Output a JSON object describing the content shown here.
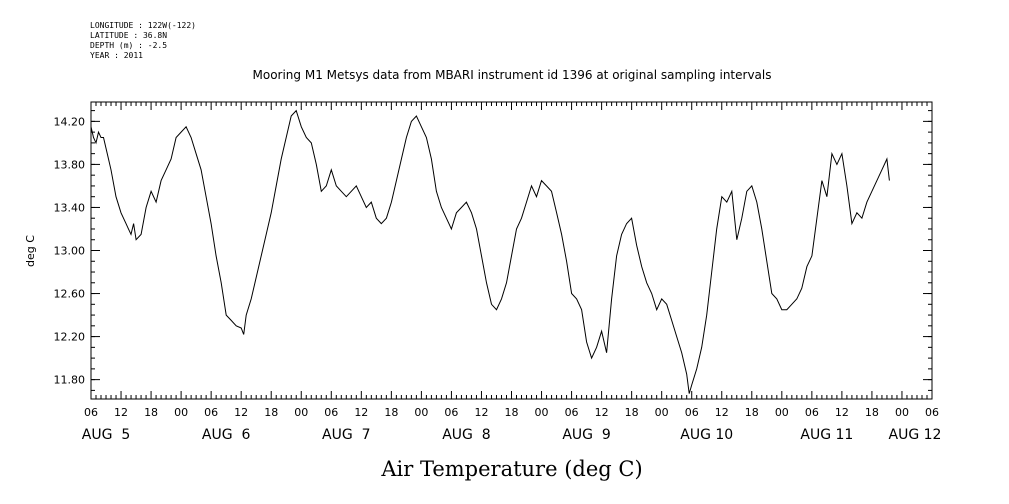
{
  "meta": {
    "longitude": "LONGITUDE : 122W(-122)",
    "latitude": "LATITUDE : 36.8N",
    "depth": "DEPTH (m) : -2.5",
    "year": "YEAR : 2011"
  },
  "chart_data": {
    "type": "line",
    "title": "Mooring M1 Metsys data from MBARI instrument id 1396 at original sampling intervals",
    "xlabel": "Air Temperature (deg C)",
    "ylabel": "deg C",
    "xlim": [
      0,
      168
    ],
    "ylim": [
      11.62,
      14.38
    ],
    "x_units": "hours since AUG 5 06:00 (2011)",
    "yticks": [
      {
        "value": 11.8,
        "label": "11.80"
      },
      {
        "value": 12.2,
        "label": "12.20"
      },
      {
        "value": 12.6,
        "label": "12.60"
      },
      {
        "value": 13.0,
        "label": "13.00"
      },
      {
        "value": 13.4,
        "label": "13.40"
      },
      {
        "value": 13.8,
        "label": "13.80"
      },
      {
        "value": 14.2,
        "label": "14.20"
      }
    ],
    "xticks": [
      {
        "x": 0,
        "label": "06"
      },
      {
        "x": 6,
        "label": "12"
      },
      {
        "x": 12,
        "label": "18"
      },
      {
        "x": 18,
        "label": "00"
      },
      {
        "x": 24,
        "label": "06"
      },
      {
        "x": 30,
        "label": "12"
      },
      {
        "x": 36,
        "label": "18"
      },
      {
        "x": 42,
        "label": "00"
      },
      {
        "x": 48,
        "label": "06"
      },
      {
        "x": 54,
        "label": "12"
      },
      {
        "x": 60,
        "label": "18"
      },
      {
        "x": 66,
        "label": "00"
      },
      {
        "x": 72,
        "label": "06"
      },
      {
        "x": 78,
        "label": "12"
      },
      {
        "x": 84,
        "label": "18"
      },
      {
        "x": 90,
        "label": "00"
      },
      {
        "x": 96,
        "label": "06"
      },
      {
        "x": 102,
        "label": "12"
      },
      {
        "x": 108,
        "label": "18"
      },
      {
        "x": 114,
        "label": "00"
      },
      {
        "x": 120,
        "label": "06"
      },
      {
        "x": 126,
        "label": "12"
      },
      {
        "x": 132,
        "label": "18"
      },
      {
        "x": 138,
        "label": "00"
      },
      {
        "x": 144,
        "label": "06"
      },
      {
        "x": 150,
        "label": "12"
      },
      {
        "x": 156,
        "label": "18"
      },
      {
        "x": 162,
        "label": "00"
      },
      {
        "x": 168,
        "label": "06"
      }
    ],
    "day_labels": [
      {
        "x": 3,
        "label": "AUG  5"
      },
      {
        "x": 27,
        "label": "AUG  6"
      },
      {
        "x": 51,
        "label": "AUG  7"
      },
      {
        "x": 75,
        "label": "AUG  8"
      },
      {
        "x": 99,
        "label": "AUG  9"
      },
      {
        "x": 123,
        "label": "AUG 10"
      },
      {
        "x": 147,
        "label": "AUG 11"
      },
      {
        "x": 168,
        "label": "AUG 12"
      }
    ],
    "series": [
      {
        "points": [
          [
            0.0,
            14.15
          ],
          [
            0.5,
            14.05
          ],
          [
            1.0,
            14.0
          ],
          [
            1.5,
            14.1
          ],
          [
            2.0,
            14.05
          ],
          [
            2.5,
            14.05
          ],
          [
            3.0,
            13.95
          ],
          [
            3.5,
            13.85
          ],
          [
            4.0,
            13.75
          ],
          [
            5.0,
            13.5
          ],
          [
            6.0,
            13.35
          ],
          [
            7.0,
            13.25
          ],
          [
            8.0,
            13.15
          ],
          [
            8.5,
            13.25
          ],
          [
            9.0,
            13.1
          ],
          [
            10.0,
            13.15
          ],
          [
            11.0,
            13.4
          ],
          [
            12.0,
            13.55
          ],
          [
            13.0,
            13.45
          ],
          [
            14.0,
            13.65
          ],
          [
            15.0,
            13.75
          ],
          [
            16.0,
            13.85
          ],
          [
            17.0,
            14.05
          ],
          [
            18.0,
            14.1
          ],
          [
            19.0,
            14.15
          ],
          [
            20.0,
            14.05
          ],
          [
            21.0,
            13.9
          ],
          [
            22.0,
            13.75
          ],
          [
            23.0,
            13.5
          ],
          [
            24.0,
            13.25
          ],
          [
            25.0,
            12.95
          ],
          [
            26.0,
            12.7
          ],
          [
            27.0,
            12.4
          ],
          [
            28.0,
            12.35
          ],
          [
            29.0,
            12.3
          ],
          [
            30.0,
            12.28
          ],
          [
            30.5,
            12.22
          ],
          [
            31.0,
            12.4
          ],
          [
            32.0,
            12.55
          ],
          [
            33.0,
            12.75
          ],
          [
            34.0,
            12.95
          ],
          [
            35.0,
            13.15
          ],
          [
            36.0,
            13.35
          ],
          [
            37.0,
            13.6
          ],
          [
            38.0,
            13.85
          ],
          [
            39.0,
            14.05
          ],
          [
            40.0,
            14.25
          ],
          [
            41.0,
            14.3
          ],
          [
            42.0,
            14.15
          ],
          [
            43.0,
            14.05
          ],
          [
            44.0,
            14.0
          ],
          [
            45.0,
            13.8
          ],
          [
            46.0,
            13.55
          ],
          [
            47.0,
            13.6
          ],
          [
            48.0,
            13.75
          ],
          [
            49.0,
            13.6
          ],
          [
            50.0,
            13.55
          ],
          [
            51.0,
            13.5
          ],
          [
            52.0,
            13.55
          ],
          [
            53.0,
            13.6
          ],
          [
            54.0,
            13.5
          ],
          [
            55.0,
            13.4
          ],
          [
            56.0,
            13.45
          ],
          [
            57.0,
            13.3
          ],
          [
            58.0,
            13.25
          ],
          [
            59.0,
            13.3
          ],
          [
            60.0,
            13.45
          ],
          [
            61.0,
            13.65
          ],
          [
            62.0,
            13.85
          ],
          [
            63.0,
            14.05
          ],
          [
            64.0,
            14.2
          ],
          [
            65.0,
            14.25
          ],
          [
            66.0,
            14.15
          ],
          [
            67.0,
            14.05
          ],
          [
            68.0,
            13.85
          ],
          [
            69.0,
            13.55
          ],
          [
            70.0,
            13.4
          ],
          [
            71.0,
            13.3
          ],
          [
            72.0,
            13.2
          ],
          [
            73.0,
            13.35
          ],
          [
            74.0,
            13.4
          ],
          [
            75.0,
            13.45
          ],
          [
            76.0,
            13.35
          ],
          [
            77.0,
            13.2
          ],
          [
            78.0,
            12.95
          ],
          [
            79.0,
            12.7
          ],
          [
            80.0,
            12.5
          ],
          [
            81.0,
            12.45
          ],
          [
            82.0,
            12.55
          ],
          [
            83.0,
            12.7
          ],
          [
            84.0,
            12.95
          ],
          [
            85.0,
            13.2
          ],
          [
            86.0,
            13.3
          ],
          [
            87.0,
            13.45
          ],
          [
            88.0,
            13.6
          ],
          [
            89.0,
            13.5
          ],
          [
            90.0,
            13.65
          ],
          [
            91.0,
            13.6
          ],
          [
            92.0,
            13.55
          ],
          [
            93.0,
            13.35
          ],
          [
            94.0,
            13.15
          ],
          [
            95.0,
            12.9
          ],
          [
            96.0,
            12.6
          ],
          [
            97.0,
            12.55
          ],
          [
            98.0,
            12.45
          ],
          [
            99.0,
            12.15
          ],
          [
            100.0,
            12.0
          ],
          [
            101.0,
            12.1
          ],
          [
            102.0,
            12.25
          ],
          [
            103.0,
            12.05
          ],
          [
            104.0,
            12.55
          ],
          [
            105.0,
            12.95
          ],
          [
            106.0,
            13.15
          ],
          [
            107.0,
            13.25
          ],
          [
            108.0,
            13.3
          ],
          [
            109.0,
            13.05
          ],
          [
            110.0,
            12.85
          ],
          [
            111.0,
            12.7
          ],
          [
            112.0,
            12.6
          ],
          [
            113.0,
            12.45
          ],
          [
            114.0,
            12.55
          ],
          [
            115.0,
            12.5
          ],
          [
            116.0,
            12.35
          ],
          [
            117.0,
            12.2
          ],
          [
            118.0,
            12.05
          ],
          [
            119.0,
            11.85
          ],
          [
            119.5,
            11.67
          ],
          [
            120.0,
            11.75
          ],
          [
            121.0,
            11.9
          ],
          [
            122.0,
            12.1
          ],
          [
            123.0,
            12.4
          ],
          [
            124.0,
            12.8
          ],
          [
            125.0,
            13.2
          ],
          [
            126.0,
            13.5
          ],
          [
            127.0,
            13.45
          ],
          [
            128.0,
            13.55
          ],
          [
            129.0,
            13.1
          ],
          [
            130.0,
            13.3
          ],
          [
            131.0,
            13.55
          ],
          [
            132.0,
            13.6
          ],
          [
            133.0,
            13.45
          ],
          [
            134.0,
            13.2
          ],
          [
            135.0,
            12.9
          ],
          [
            136.0,
            12.6
          ],
          [
            137.0,
            12.55
          ],
          [
            138.0,
            12.45
          ],
          [
            139.0,
            12.45
          ],
          [
            140.0,
            12.5
          ],
          [
            141.0,
            12.55
          ],
          [
            142.0,
            12.65
          ],
          [
            143.0,
            12.85
          ],
          [
            144.0,
            12.95
          ],
          [
            145.0,
            13.3
          ],
          [
            146.0,
            13.65
          ],
          [
            147.0,
            13.5
          ],
          [
            148.0,
            13.9
          ],
          [
            149.0,
            13.8
          ],
          [
            150.0,
            13.9
          ],
          [
            151.0,
            13.6
          ],
          [
            152.0,
            13.25
          ],
          [
            153.0,
            13.35
          ],
          [
            154.0,
            13.3
          ],
          [
            155.0,
            13.45
          ],
          [
            156.0,
            13.55
          ],
          [
            157.0,
            13.65
          ],
          [
            158.0,
            13.75
          ],
          [
            159.0,
            13.85
          ],
          [
            159.5,
            13.65
          ]
        ]
      }
    ]
  }
}
